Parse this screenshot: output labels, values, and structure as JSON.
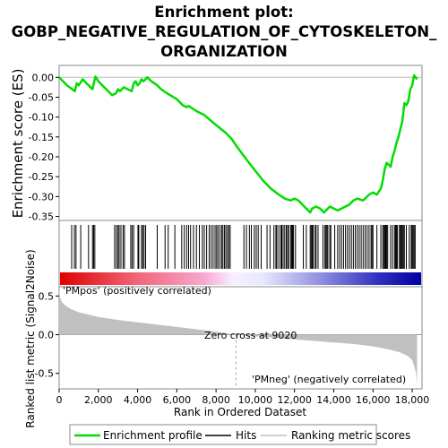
{
  "title_lines": [
    "Enrichment plot:",
    "GOBP_NEGATIVE_REGULATION_OF_CYTOSKELETON_",
    "ORGANIZATION"
  ],
  "colors": {
    "es_line": "#00dd00",
    "hits": "#000000",
    "metric_fill": "#c0c0c0",
    "pos_label": "#cc0000",
    "neg_label": "#0000cc",
    "frame": "#888888"
  },
  "annotations": {
    "pos_label": "'PMpos' (positively correlated)",
    "neg_label": "'PMneg' (negatively correlated)",
    "zero_cross": "Zero cross at 9020"
  },
  "legend": {
    "items": [
      {
        "label": "Enrichment profile",
        "icon": "green-line"
      },
      {
        "label": "Hits",
        "icon": "black-line"
      },
      {
        "label": "Ranking metric scores",
        "icon": "gray-line"
      }
    ]
  },
  "chart_data": [
    {
      "type": "line",
      "name": "enrichment-profile",
      "title": "Enrichment plot: GOBP_NEGATIVE_REGULATION_OF_CYTOSKELETON_ORGANIZATION",
      "ylabel": "Enrichment score (ES)",
      "xlim": [
        0,
        18500
      ],
      "ylim": [
        -0.36,
        0.03
      ],
      "y_ticks": [
        0.0,
        -0.05,
        -0.1,
        -0.15,
        -0.2,
        -0.25,
        -0.3,
        -0.35
      ],
      "y_tick_labels": [
        "0.00",
        "-0.05",
        "-0.10",
        "-0.15",
        "-0.20",
        "-0.25",
        "-0.30",
        "-0.35"
      ],
      "grid": false,
      "x": [
        0,
        400,
        800,
        900,
        1000,
        1200,
        1500,
        1700,
        1850,
        2000,
        2200,
        2500,
        2700,
        2900,
        3000,
        3100,
        3300,
        3500,
        3700,
        3800,
        3900,
        4000,
        4100,
        4200,
        4300,
        4400,
        4500,
        4700,
        5000,
        5200,
        5500,
        6000,
        6300,
        6500,
        6600,
        7000,
        7400,
        8000,
        8500,
        8800,
        9000,
        9300,
        9600,
        10000,
        10400,
        10800,
        11200,
        11500,
        11800,
        12000,
        12200,
        12500,
        12700,
        12800,
        12900,
        13100,
        13300,
        13500,
        13700,
        13800,
        14000,
        14200,
        14400,
        14600,
        14800,
        15000,
        15200,
        15500,
        15700,
        15800,
        16000,
        16200,
        16400,
        16500,
        16600,
        16700,
        16800,
        16900,
        17000,
        17100,
        17200,
        17300,
        17400,
        17500,
        17600,
        17700,
        17800,
        17900,
        18000,
        18100,
        18250
      ],
      "y": [
        0.0,
        -0.02,
        -0.035,
        -0.015,
        -0.02,
        -0.005,
        -0.02,
        -0.03,
        0.002,
        -0.01,
        -0.02,
        -0.035,
        -0.045,
        -0.04,
        -0.03,
        -0.035,
        -0.025,
        -0.03,
        -0.035,
        -0.015,
        -0.01,
        -0.02,
        -0.015,
        -0.005,
        -0.01,
        -0.005,
        0.0,
        -0.01,
        -0.02,
        -0.03,
        -0.04,
        -0.055,
        -0.07,
        -0.075,
        -0.072,
        -0.085,
        -0.095,
        -0.12,
        -0.14,
        -0.155,
        -0.17,
        -0.19,
        -0.21,
        -0.235,
        -0.26,
        -0.28,
        -0.295,
        -0.305,
        -0.31,
        -0.305,
        -0.31,
        -0.325,
        -0.335,
        -0.34,
        -0.33,
        -0.325,
        -0.33,
        -0.34,
        -0.33,
        -0.325,
        -0.33,
        -0.335,
        -0.33,
        -0.325,
        -0.32,
        -0.31,
        -0.305,
        -0.31,
        -0.3,
        -0.295,
        -0.29,
        -0.295,
        -0.28,
        -0.26,
        -0.23,
        -0.215,
        -0.22,
        -0.225,
        -0.2,
        -0.185,
        -0.165,
        -0.15,
        -0.13,
        -0.11,
        -0.065,
        -0.07,
        -0.06,
        -0.03,
        -0.02,
        0.005,
        -0.005
      ]
    },
    {
      "type": "bar",
      "name": "hits",
      "hit_ranks": [
        640,
        780,
        860,
        1100,
        1500,
        1700,
        1760,
        1820,
        2830,
        2920,
        3000,
        3060,
        3150,
        3260,
        3330,
        3650,
        3720,
        3800,
        4020,
        4060,
        4200,
        4260,
        4330,
        4410,
        5000,
        5400,
        5560,
        5900,
        6250,
        6380,
        6500,
        6600,
        6700,
        6850,
        7000,
        7150,
        7300,
        7400,
        7520,
        7650,
        7750,
        7850,
        7950,
        8030,
        8100,
        8200,
        8290,
        8350,
        8430,
        8500,
        8580,
        8650,
        8720,
        9420,
        9550,
        9700,
        9800,
        9950,
        10050,
        10150,
        10300,
        10600,
        10750,
        10950,
        11050,
        11100,
        11200,
        11300,
        11350,
        11420,
        11500,
        11580,
        11650,
        11700,
        11800,
        11850,
        11900,
        11950,
        12050,
        12450,
        12600,
        12800,
        12850,
        12900,
        12950,
        13050,
        13100,
        13200,
        13450,
        13550,
        13600,
        13650,
        13700,
        13800,
        13850,
        14050,
        14200,
        14300,
        14400,
        14500,
        14600,
        14700,
        14800,
        14900,
        15000,
        15100,
        15200,
        15300,
        15400,
        15500,
        15600,
        15700,
        15800,
        15900,
        15950,
        16000,
        16200,
        16400,
        16500,
        16550,
        16600,
        16650,
        16700,
        16750,
        16900,
        17000,
        17100,
        17150,
        17200,
        17250,
        17350,
        17400,
        17450,
        17500,
        17550,
        17600,
        17700,
        17850,
        17950,
        18000,
        18050,
        18100,
        18150
      ]
    },
    {
      "type": "area",
      "name": "ranked-list-metric",
      "ylabel": "Ranked list metric (Signal2Noise)",
      "xlabel": "Rank in Ordered Dataset",
      "xlim": [
        0,
        18500
      ],
      "ylim": [
        -0.7,
        0.62
      ],
      "x_ticks": [
        0,
        2000,
        4000,
        6000,
        8000,
        10000,
        12000,
        14000,
        16000,
        18000
      ],
      "x_tick_labels": [
        "0",
        "2,000",
        "4,000",
        "6,000",
        "8,000",
        "10,000",
        "12,000",
        "14,000",
        "16,000",
        "18,000"
      ],
      "y_ticks": [
        0.5,
        0.0,
        -0.5
      ],
      "y_tick_labels": [
        "0.5",
        "0.0",
        "-0.5"
      ],
      "zero_cross": 9020,
      "x": [
        0,
        50,
        150,
        300,
        600,
        1000,
        1500,
        2000,
        3000,
        4000,
        5000,
        6000,
        7000,
        8000,
        9020,
        10000,
        11000,
        12000,
        13000,
        14000,
        15000,
        16000,
        16800,
        17400,
        17800,
        18000,
        18100,
        18200,
        18250
      ],
      "y": [
        0.6,
        0.48,
        0.42,
        0.38,
        0.33,
        0.29,
        0.26,
        0.23,
        0.19,
        0.16,
        0.13,
        0.1,
        0.07,
        0.04,
        0.0,
        -0.02,
        -0.04,
        -0.06,
        -0.08,
        -0.1,
        -0.12,
        -0.15,
        -0.19,
        -0.23,
        -0.28,
        -0.33,
        -0.4,
        -0.5,
        -0.65
      ]
    }
  ]
}
